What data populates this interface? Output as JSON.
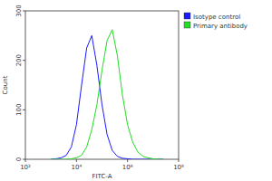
{
  "chart_data": {
    "type": "line",
    "x_label": "FITC-A",
    "y_label": "Count",
    "log": "x",
    "x": [
      1000,
      1585,
      2512,
      3981,
      6310,
      10000,
      15849,
      25119,
      39811,
      63096,
      100000,
      158489,
      251189,
      398107,
      630957,
      1000000,
      1584893,
      2511886,
      3981072,
      6309573,
      10000000,
      15848932,
      25118864
    ],
    "series": [
      {
        "name": "Isotype control",
        "color": "#1a1aff",
        "values": [
          0,
          1,
          3,
          8,
          25,
          70,
          150,
          225,
          250,
          190,
          110,
          50,
          18,
          6,
          2,
          1,
          0,
          0,
          0,
          0,
          0,
          0,
          0
        ]
      },
      {
        "name": "Primary antibody",
        "color": "#22dd22",
        "values": [
          0,
          0,
          0,
          0,
          1,
          3,
          8,
          25,
          60,
          110,
          180,
          240,
          262,
          210,
          130,
          70,
          35,
          15,
          6,
          3,
          1,
          0,
          0
        ]
      }
    ],
    "xlim": [
      100,
      100000000
    ],
    "xticks": [
      {
        "value": 100,
        "label": "10²"
      },
      {
        "value": 10000,
        "label": "10⁴"
      },
      {
        "value": 1000000,
        "label": "10⁶"
      },
      {
        "value": 100000000,
        "label": "10⁸"
      }
    ],
    "ylim": [
      0,
      300
    ],
    "yticks": [
      0,
      100,
      200,
      300
    ],
    "grid": false,
    "legend": "right"
  }
}
